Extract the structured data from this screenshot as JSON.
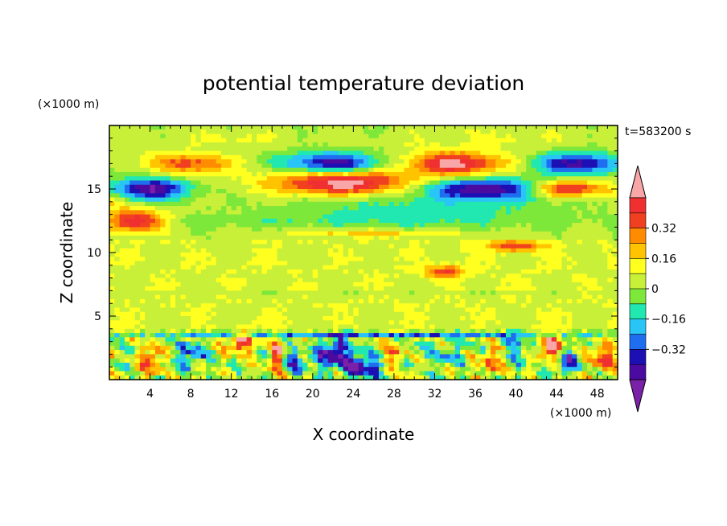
{
  "chart_data": {
    "type": "heatmap",
    "title": "potential temperature deviation",
    "xlabel": "X coordinate",
    "ylabel": "Z coordinate",
    "x_units": "(×1000 m)",
    "y_units": "(×1000 m)",
    "time_label": "t=583200 s",
    "xlim": [
      0,
      50
    ],
    "ylim": [
      0,
      20
    ],
    "x_ticks": [
      4,
      8,
      12,
      16,
      20,
      24,
      28,
      32,
      36,
      40,
      44,
      48
    ],
    "y_ticks": [
      5,
      10,
      15
    ],
    "colorbar": {
      "min": -0.48,
      "max": 0.48,
      "step": 0.08,
      "extend": "both",
      "tick_values": [
        -0.32,
        -0.16,
        0,
        0.16,
        0.32
      ],
      "tick_labels": [
        "−0.32",
        "−0.16",
        "0",
        "0.16",
        "0.32"
      ],
      "colors": [
        "#7b20a8",
        "#4b0aa0",
        "#1c10b4",
        "#1f6ef0",
        "#29c5f6",
        "#20e8b0",
        "#7de83a",
        "#c8f038",
        "#ffff20",
        "#ffc300",
        "#ff8c00",
        "#f04020",
        "#f03030",
        "#f8a6a8"
      ]
    },
    "features": [
      {
        "x": 4.0,
        "z": 15.0,
        "rx": 4.0,
        "rz": 0.9,
        "value": -0.45
      },
      {
        "x": 22.0,
        "z": 17.0,
        "rx": 5.5,
        "rz": 0.9,
        "value": -0.42
      },
      {
        "x": 46.0,
        "z": 17.0,
        "rx": 4.5,
        "rz": 0.9,
        "value": -0.4
      },
      {
        "x": 37.0,
        "z": 15.0,
        "rx": 6.5,
        "rz": 0.9,
        "value": -0.45
      },
      {
        "x": 23.0,
        "z": 15.5,
        "rx": 7.5,
        "rz": 1.1,
        "value": 0.45
      },
      {
        "x": 34.0,
        "z": 17.0,
        "rx": 5.5,
        "rz": 1.0,
        "value": 0.42
      },
      {
        "x": 8.0,
        "z": 17.0,
        "rx": 4.5,
        "rz": 0.9,
        "value": 0.3
      },
      {
        "x": 45.0,
        "z": 15.0,
        "rx": 4.5,
        "rz": 0.7,
        "value": 0.4
      },
      {
        "x": 2.5,
        "z": 12.5,
        "rx": 3.0,
        "rz": 1.0,
        "value": 0.42
      },
      {
        "x": 0.0,
        "z": 14.0,
        "rx": 1.5,
        "rz": 0.6,
        "value": 0.15
      },
      {
        "x": 26.0,
        "z": 11.5,
        "rx": 9.5,
        "rz": 0.35,
        "value": 0.16
      },
      {
        "x": 40.0,
        "z": 10.5,
        "rx": 3.0,
        "rz": 0.45,
        "value": 0.3
      },
      {
        "x": 30.0,
        "z": 13.5,
        "rx": 14.0,
        "rz": 1.3,
        "value": -0.12
      },
      {
        "x": 25.0,
        "z": 12.5,
        "rx": 25.0,
        "rz": 0.6,
        "value": -0.06
      },
      {
        "x": 12.0,
        "z": 19.0,
        "rx": 6.0,
        "rz": 0.8,
        "value": 0.06
      },
      {
        "x": 38.0,
        "z": 19.0,
        "rx": 10.0,
        "rz": 0.8,
        "value": 0.06
      },
      {
        "x": 33.0,
        "z": 8.5,
        "rx": 2.0,
        "rz": 0.5,
        "value": 0.3
      },
      {
        "x": 16.5,
        "z": 2.0,
        "rx": 0.9,
        "rz": 1.5,
        "value": 0.4
      },
      {
        "x": 4.0,
        "z": 1.5,
        "rx": 1.0,
        "rz": 1.5,
        "value": 0.32
      },
      {
        "x": 13.0,
        "z": 3.0,
        "rx": 1.4,
        "rz": 0.8,
        "value": 0.4
      },
      {
        "x": 43.5,
        "z": 2.5,
        "rx": 1.3,
        "rz": 1.2,
        "value": 0.42
      },
      {
        "x": 22.0,
        "z": 2.0,
        "rx": 2.0,
        "rz": 1.2,
        "value": -0.42
      },
      {
        "x": 25.0,
        "z": 1.0,
        "rx": 2.0,
        "rz": 1.0,
        "value": -0.4
      },
      {
        "x": 18.0,
        "z": 1.5,
        "rx": 1.5,
        "rz": 1.0,
        "value": -0.3
      },
      {
        "x": 45.0,
        "z": 1.5,
        "rx": 1.2,
        "rz": 1.0,
        "value": -0.35
      },
      {
        "x": 8.0,
        "z": 2.0,
        "rx": 1.5,
        "rz": 1.0,
        "value": -0.25
      },
      {
        "x": 28.0,
        "z": 2.0,
        "rx": 1.0,
        "rz": 1.2,
        "value": 0.25
      },
      {
        "x": 37.5,
        "z": 1.5,
        "rx": 1.0,
        "rz": 1.3,
        "value": 0.28
      },
      {
        "x": 48.5,
        "z": 1.5,
        "rx": 1.2,
        "rz": 1.3,
        "value": 0.3
      },
      {
        "x": 33.0,
        "z": 2.0,
        "rx": 1.5,
        "rz": 1.0,
        "value": -0.22
      },
      {
        "x": 40.0,
        "z": 2.5,
        "rx": 1.5,
        "rz": 1.0,
        "value": -0.2
      },
      {
        "x": 25.0,
        "z": 3.5,
        "rx": 25.0,
        "rz": 0.2,
        "value": -0.28
      },
      {
        "x": 25.0,
        "z": 6.8,
        "rx": 25.0,
        "rz": 0.25,
        "value": -0.05
      }
    ]
  }
}
